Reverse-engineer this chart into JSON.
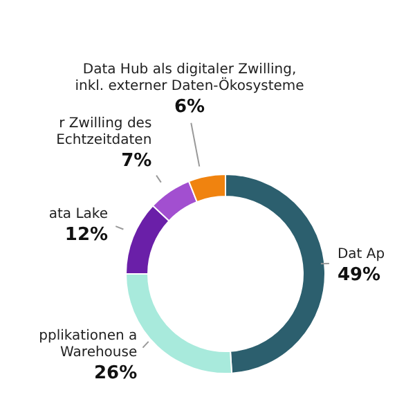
{
  "chart_data": {
    "type": "donut",
    "categories": [
      "Dat Ap",
      "pplikationen a Warehouse",
      "ata Lake",
      "r Zwilling des Echtzeitdaten",
      "Data Hub als digitaler Zwilling, inkl. externer Daten-Ökosysteme"
    ],
    "values": [
      49,
      26,
      12,
      7,
      6
    ],
    "value_labels": [
      "49%",
      "26%",
      "12%",
      "7%",
      "6%"
    ],
    "colors": [
      "#2c5f6e",
      "#a8eadc",
      "#6a1fa8",
      "#a24fd0",
      "#f0830f"
    ],
    "legend": false
  }
}
